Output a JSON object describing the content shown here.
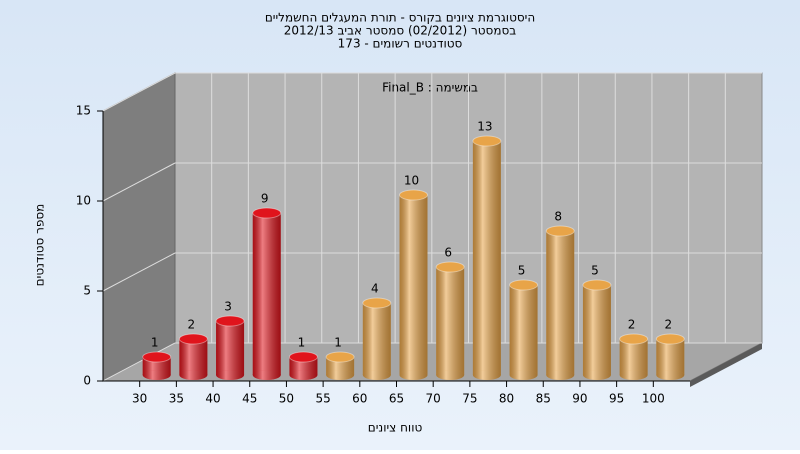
{
  "chart_data": {
    "type": "bar",
    "title": [
      "היסטוגרמת ציונים בקורס - תורת המעגלים החשמליים",
      "בסמסטר (02/2012) סמסטר אביב 2012/13",
      "סטודנטים רשומים - 173"
    ],
    "annotation": "במשימה : Final_B",
    "x_label": "טווח ציונים",
    "y_label": "מספר סטודנטים",
    "categories": [
      "30",
      "35",
      "40",
      "45",
      "50",
      "55",
      "60",
      "65",
      "70",
      "75",
      "80",
      "85",
      "90",
      "95",
      "100"
    ],
    "values": [
      1,
      2,
      3,
      9,
      1,
      1,
      4,
      10,
      6,
      13,
      5,
      8,
      5,
      2,
      2
    ],
    "colors": [
      "#e0141c",
      "#e0141c",
      "#e0141c",
      "#e0141c",
      "#e0141c",
      "#e8a448",
      "#e8a448",
      "#e8a448",
      "#e8a448",
      "#e8a448",
      "#e8a448",
      "#e8a448",
      "#e8a448",
      "#e8a448",
      "#e8a448"
    ],
    "ylim": [
      0,
      15
    ],
    "yticks": [
      0,
      5,
      10,
      15
    ],
    "grid": true
  }
}
